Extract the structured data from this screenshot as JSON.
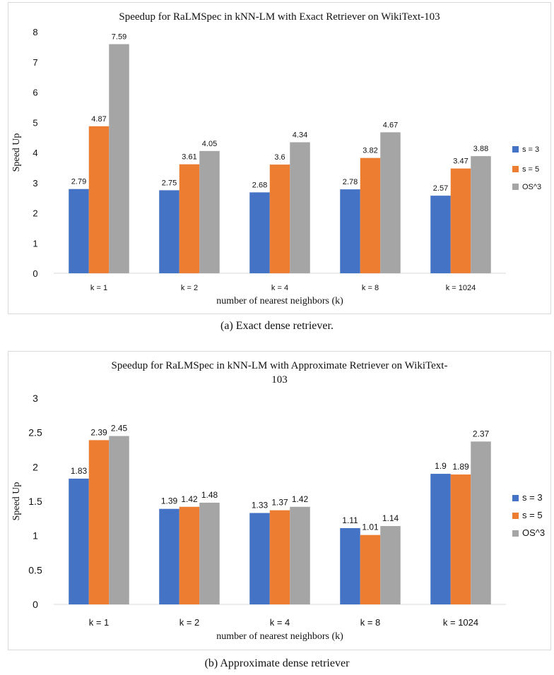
{
  "colors": {
    "s3": "#4472C4",
    "s5": "#ED7D31",
    "os3": "#A5A5A5",
    "axis": "#d9d9d9",
    "text": "#111111"
  },
  "captions": {
    "a": "(a)  Exact dense retriever.",
    "b": "(b)  Approximate dense retriever"
  },
  "chart_data": [
    {
      "type": "bar",
      "title_lines": [
        "Speedup for RaLMSpec in kNN-LM with Exact Retriever on WikiText-103"
      ],
      "xlabel": "number of nearest neighbors (k)",
      "ylabel": "Speed Up",
      "categories": [
        "k = 1",
        "k =  2",
        "k = 4",
        "k = 8",
        "k = 1024"
      ],
      "ylim": [
        0,
        8
      ],
      "yticks": [
        "0",
        "1",
        "2",
        "3",
        "4",
        "5",
        "6",
        "7",
        "8"
      ],
      "legend_position": "right",
      "series": [
        {
          "name": "s = 3",
          "color_key": "s3",
          "values": [
            2.79,
            2.75,
            2.68,
            2.78,
            2.57
          ],
          "labels": [
            "2.79",
            "2.75",
            "2.68",
            "2.78",
            "2.57"
          ]
        },
        {
          "name": "s = 5",
          "color_key": "s5",
          "values": [
            4.87,
            3.61,
            3.6,
            3.82,
            3.47
          ],
          "labels": [
            "4.87",
            "3.61",
            "3.6",
            "3.82",
            "3.47"
          ]
        },
        {
          "name": "OS^3",
          "color_key": "os3",
          "values": [
            7.59,
            4.05,
            4.34,
            4.67,
            3.88
          ],
          "labels": [
            "7.59",
            "4.05",
            "4.34",
            "4.67",
            "3.88"
          ]
        }
      ]
    },
    {
      "type": "bar",
      "title_lines": [
        "Speedup for RaLMSpec in kNN-LM with Approximate Retriever on WikiText-",
        "103"
      ],
      "xlabel": "number of nearest neighbors (k)",
      "ylabel": "Speed Up",
      "categories": [
        "k = 1",
        "k =  2",
        "k = 4",
        "k = 8",
        "k = 1024"
      ],
      "ylim": [
        0,
        3
      ],
      "yticks": [
        "0",
        "0.5",
        "1",
        "1.5",
        "2",
        "2.5",
        "3"
      ],
      "legend_position": "right",
      "series": [
        {
          "name": "s = 3",
          "color_key": "s3",
          "values": [
            1.83,
            1.39,
            1.33,
            1.11,
            1.9
          ],
          "labels": [
            "1.83",
            "1.39",
            "1.33",
            "1.11",
            "1.9"
          ]
        },
        {
          "name": "s = 5",
          "color_key": "s5",
          "values": [
            2.39,
            1.42,
            1.37,
            1.01,
            1.89
          ],
          "labels": [
            "2.39",
            "1.42",
            "1.37",
            "1.01",
            "1.89"
          ]
        },
        {
          "name": "OS^3",
          "color_key": "os3",
          "values": [
            2.45,
            1.48,
            1.42,
            1.14,
            2.37
          ],
          "labels": [
            "2.45",
            "1.48",
            "1.42",
            "1.14",
            "2.37"
          ]
        }
      ]
    }
  ]
}
